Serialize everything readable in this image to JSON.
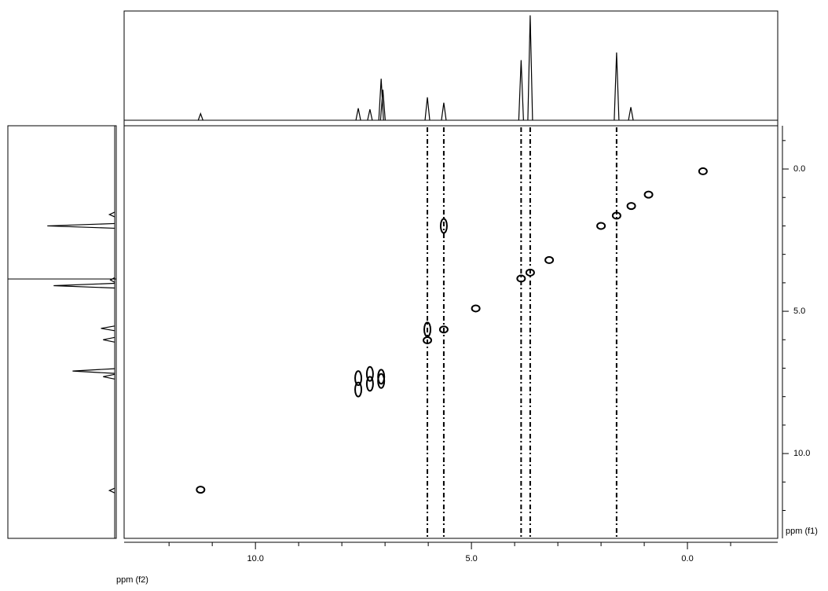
{
  "chart_data": {
    "type": "nmr2d",
    "xlabel": "ppm (f2)",
    "ylabel": "ppm (f1)",
    "xlim": [
      13.04,
      -2.09
    ],
    "ylim": [
      -1.52,
      12.98
    ],
    "xticks": [
      {
        "value": 10,
        "label": "10.0"
      },
      {
        "value": 5,
        "label": "5.0"
      },
      {
        "value": 0,
        "label": "0.0"
      }
    ],
    "xminor": [
      12,
      11,
      9,
      8,
      7,
      6,
      4,
      3,
      2,
      1,
      -1
    ],
    "yticks": [
      {
        "value": 0,
        "label": "0.0"
      },
      {
        "value": 5,
        "label": "5.0"
      },
      {
        "value": 10,
        "label": "10.0"
      }
    ],
    "yminor": [
      -1,
      1,
      2,
      3,
      4,
      6,
      7,
      8,
      9,
      11,
      12
    ],
    "color": "#000000",
    "projection_f2": {
      "ppm": [
        11.27,
        7.62,
        7.35,
        7.09,
        7.05,
        6.02,
        5.64,
        3.85,
        3.64,
        1.64,
        1.31
      ],
      "intensity": [
        6,
        11,
        10,
        38,
        28,
        21,
        16,
        55,
        96,
        62,
        12
      ]
    },
    "projection_f1": {
      "ppm": [
        1.6,
        2.0,
        3.9,
        4.1,
        5.6,
        6.0,
        7.1,
        7.3,
        11.3
      ],
      "intensity": [
        5,
        64,
        4,
        58,
        13,
        11,
        40,
        11,
        5
      ]
    },
    "streaks": [
      6.02,
      5.64,
      3.85,
      3.64,
      1.64
    ],
    "diagonal_peaks": {
      "f2": [
        11.27,
        6.02,
        5.64,
        4.9,
        3.85,
        3.64,
        3.2,
        2.0,
        1.64,
        1.3,
        0.9,
        -0.36
      ],
      "f1": [
        11.27,
        6.02,
        5.64,
        4.9,
        3.85,
        3.64,
        3.2,
        2.0,
        1.64,
        1.3,
        0.9,
        0.08
      ]
    },
    "cross_peaks": {
      "f2": [
        7.62,
        7.35,
        7.09,
        7.62,
        7.35,
        7.09,
        5.64,
        6.02
      ],
      "f1": [
        7.75,
        7.55,
        7.45,
        7.35,
        7.2,
        7.3,
        2.0,
        5.64
      ]
    }
  }
}
